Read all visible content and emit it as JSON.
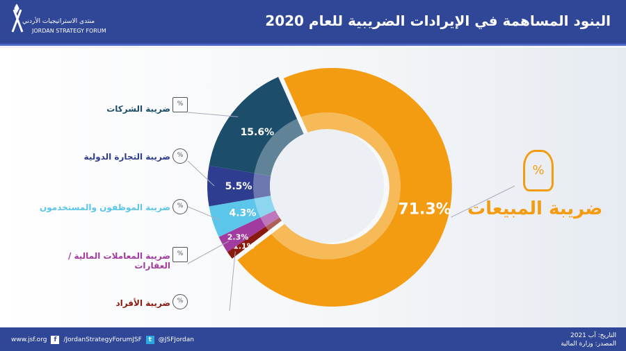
{
  "header": {
    "title": "البنود المساهمة في الإيرادات الضريبية للعام 2020",
    "logo_ar": "منتدى الاستراتيجيات الأردني",
    "logo_en": "JORDAN STRATEGY FORUM"
  },
  "footer": {
    "website": "www.jsf.org",
    "facebook": "/JordanStrategyForumJSF",
    "twitter": "@JSFJordan",
    "date": "التاريخ: آب 2021",
    "source": "المصدر: وزارة المالية",
    "facebook_icon": "f",
    "twitter_icon": "t"
  },
  "chart_data": {
    "type": "pie",
    "donut": true,
    "categories": [
      "ضريبة المبيعات",
      "ضريبة الأفراد",
      "ضريبة المعاملات المالية / العقارات",
      "ضريبة الموظفون والمستخدمون",
      "ضريبة التجارة الدولية",
      "ضريبة الشركات"
    ],
    "values": [
      71.3,
      1.1,
      2.3,
      4.3,
      5.5,
      15.6
    ],
    "labels": [
      "71.3%",
      "1.1%",
      "2.3%",
      "4.3%",
      "5.5%",
      "15.6%"
    ],
    "colors": [
      "#f39c12",
      "#8b1a0e",
      "#a23ba0",
      "#5bc5ea",
      "#2e3d8f",
      "#1c4e6b"
    ]
  }
}
